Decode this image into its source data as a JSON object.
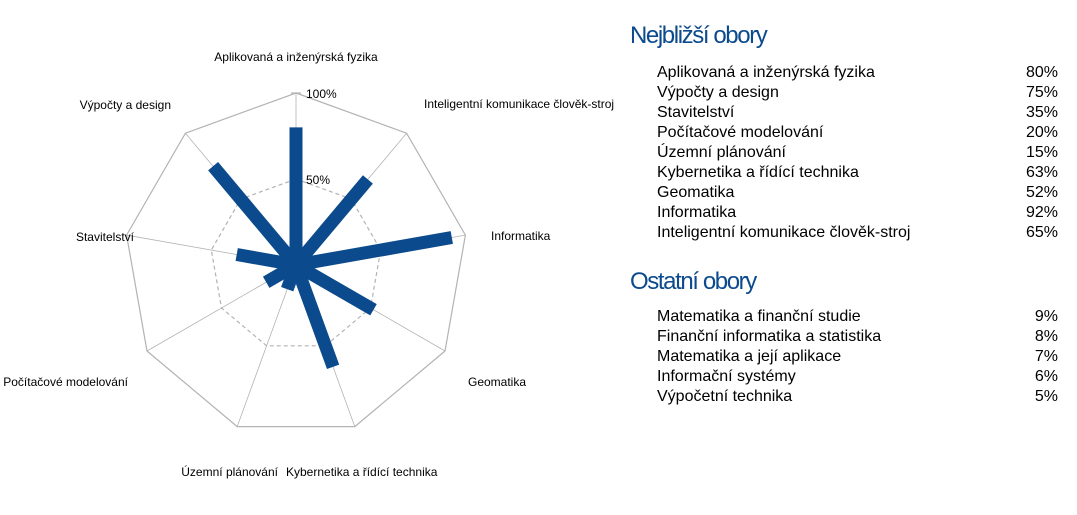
{
  "chart_data": {
    "type": "radar",
    "axes": [
      "Aplikovaná a inženýrská fyzika",
      "Inteligentní komunikace člověk-stroj",
      "Informatika",
      "Geomatika",
      "Kybernetika a řídící technika",
      "Územní plánování",
      "Počítačové modelování",
      "Stavitelství",
      "Výpočty a design"
    ],
    "values": [
      80,
      65,
      92,
      52,
      63,
      15,
      20,
      35,
      75
    ],
    "tick_labels": [
      "50%",
      "100%"
    ],
    "range": [
      0,
      100
    ],
    "grid": true,
    "colors": {
      "bar": "#0b4a8c",
      "grid": "#b3b3b3"
    }
  },
  "closest": {
    "title": "Nejbližší obory",
    "items": [
      {
        "name": "Aplikovaná a inženýrská fyzika",
        "value": "80%"
      },
      {
        "name": "Výpočty a design",
        "value": "75%"
      },
      {
        "name": "Stavitelství",
        "value": "35%"
      },
      {
        "name": "Počítačové modelování",
        "value": "20%"
      },
      {
        "name": "Územní plánování",
        "value": "15%"
      },
      {
        "name": "Kybernetika a řídící technika",
        "value": "63%"
      },
      {
        "name": "Geomatika",
        "value": "52%"
      },
      {
        "name": "Informatika",
        "value": "92%"
      },
      {
        "name": "Inteligentní komunikace člověk-stroj",
        "value": "65%"
      }
    ]
  },
  "others": {
    "title": "Ostatní obory",
    "items": [
      {
        "name": "Matematika a finanční studie",
        "value": "9%"
      },
      {
        "name": "Finanční informatika a statistika",
        "value": "8%"
      },
      {
        "name": "Matematika a její aplikace",
        "value": "7%"
      },
      {
        "name": "Informační systémy",
        "value": "6%"
      },
      {
        "name": "Výpočetní technika",
        "value": "5%"
      }
    ]
  }
}
